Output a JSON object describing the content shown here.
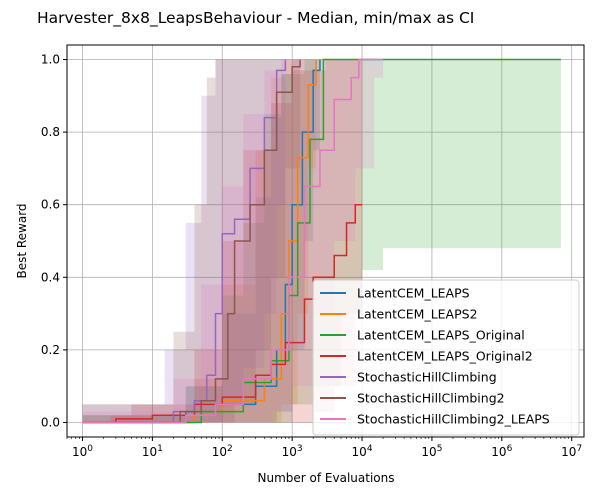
{
  "chart_data": {
    "type": "line",
    "title": "Harvester_8x8_LeapsBehaviour - Median, min/max as CI",
    "xlabel": "Number of Evaluations",
    "ylabel": "Best Reward",
    "xscale": "log",
    "xlim": [
      0.6,
      15000000
    ],
    "ylim": [
      -0.04,
      1.04
    ],
    "grid": true,
    "legend_position": "lower-right",
    "x_ticks": [
      {
        "value": 1,
        "base": "10",
        "exp": "0"
      },
      {
        "value": 10,
        "base": "10",
        "exp": "1"
      },
      {
        "value": 100,
        "base": "10",
        "exp": "2"
      },
      {
        "value": 1000,
        "base": "10",
        "exp": "3"
      },
      {
        "value": 10000,
        "base": "10",
        "exp": "4"
      },
      {
        "value": 100000,
        "base": "10",
        "exp": "5"
      },
      {
        "value": 1000000,
        "base": "10",
        "exp": "6"
      },
      {
        "value": 10000000,
        "base": "10",
        "exp": "7"
      }
    ],
    "y_ticks": [
      {
        "value": 0.0,
        "label": "0.0"
      },
      {
        "value": 0.2,
        "label": "0.2"
      },
      {
        "value": 0.4,
        "label": "0.4"
      },
      {
        "value": 0.6,
        "label": "0.6"
      },
      {
        "value": 0.8,
        "label": "0.8"
      },
      {
        "value": 1.0,
        "label": "1.0"
      }
    ],
    "series": [
      {
        "name": "LatentCEM_LEAPS",
        "color": "#1f77b4",
        "median": [
          [
            1,
            0
          ],
          [
            30,
            0.03
          ],
          [
            100,
            0.05
          ],
          [
            300,
            0.1
          ],
          [
            600,
            0.2
          ],
          [
            800,
            0.38
          ],
          [
            1000,
            0.6
          ],
          [
            1400,
            0.8
          ],
          [
            2000,
            0.97
          ],
          [
            2500,
            1.0
          ]
        ],
        "ci_upper": [
          [
            1,
            0.02
          ],
          [
            30,
            0.1
          ],
          [
            100,
            0.3
          ],
          [
            300,
            0.62
          ],
          [
            500,
            0.84
          ],
          [
            700,
            0.96
          ],
          [
            1000,
            1.0
          ],
          [
            2500,
            1.0
          ]
        ],
        "ci_lower": [
          [
            1,
            0
          ],
          [
            300,
            0
          ],
          [
            600,
            0.03
          ],
          [
            1000,
            0.2
          ],
          [
            1500,
            0.5
          ],
          [
            2000,
            0.75
          ],
          [
            2500,
            1.0
          ]
        ]
      },
      {
        "name": "LatentCEM_LEAPS2",
        "color": "#ff7f0e",
        "median": [
          [
            1,
            0
          ],
          [
            40,
            0.03
          ],
          [
            100,
            0.06
          ],
          [
            400,
            0.12
          ],
          [
            700,
            0.3
          ],
          [
            900,
            0.5
          ],
          [
            1200,
            0.73
          ],
          [
            1700,
            0.93
          ],
          [
            2200,
            1.0
          ]
        ],
        "ci_upper": [
          [
            1,
            0.02
          ],
          [
            40,
            0.12
          ],
          [
            100,
            0.38
          ],
          [
            300,
            0.75
          ],
          [
            500,
            0.95
          ],
          [
            800,
            1.0
          ],
          [
            2200,
            1.0
          ]
        ],
        "ci_lower": [
          [
            1,
            0
          ],
          [
            400,
            0
          ],
          [
            700,
            0.05
          ],
          [
            1200,
            0.3
          ],
          [
            1700,
            0.7
          ],
          [
            2200,
            1.0
          ]
        ]
      },
      {
        "name": "LatentCEM_LEAPS_Original",
        "color": "#2ca02c",
        "median": [
          [
            1,
            0
          ],
          [
            50,
            0.03
          ],
          [
            200,
            0.11
          ],
          [
            500,
            0.17
          ],
          [
            900,
            0.35
          ],
          [
            1200,
            0.55
          ],
          [
            1800,
            0.78
          ],
          [
            2800,
            1.0
          ],
          [
            7000000,
            1.0
          ]
        ],
        "ci_upper": [
          [
            1,
            0.02
          ],
          [
            30,
            0.1
          ],
          [
            100,
            0.35
          ],
          [
            200,
            0.55
          ],
          [
            400,
            0.85
          ],
          [
            700,
            0.96
          ],
          [
            1500,
            1.0
          ],
          [
            7000000,
            1.0
          ]
        ],
        "ci_lower": [
          [
            1,
            0
          ],
          [
            500,
            0
          ],
          [
            1000,
            0.05
          ],
          [
            2000,
            0.1
          ],
          [
            5000,
            0.3
          ],
          [
            10000,
            0.42
          ],
          [
            20000,
            0.48
          ],
          [
            7000000,
            0.48
          ]
        ]
      },
      {
        "name": "LatentCEM_LEAPS_Original2",
        "color": "#d62728",
        "median": [
          [
            2.5,
            0
          ],
          [
            3,
            0.01
          ],
          [
            10,
            0.02
          ],
          [
            40,
            0.05
          ],
          [
            100,
            0.07
          ],
          [
            300,
            0.13
          ],
          [
            500,
            0.16
          ],
          [
            800,
            0.22
          ],
          [
            1500,
            0.34
          ],
          [
            2000,
            0.4
          ],
          [
            4000,
            0.46
          ],
          [
            6000,
            0.55
          ],
          [
            8000,
            0.6
          ],
          [
            10000,
            0.6
          ]
        ],
        "ci_upper": [
          [
            2.5,
            0.02
          ],
          [
            5,
            0.05
          ],
          [
            40,
            0.2
          ],
          [
            100,
            0.5
          ],
          [
            200,
            0.75
          ],
          [
            500,
            0.88
          ],
          [
            1000,
            0.97
          ],
          [
            3000,
            1.0
          ],
          [
            10000,
            1.0
          ]
        ],
        "ci_lower": [
          [
            2.5,
            0
          ],
          [
            1000,
            0
          ],
          [
            2000,
            0.03
          ],
          [
            4000,
            0.1
          ],
          [
            8000,
            0.3
          ],
          [
            10000,
            0.4
          ]
        ]
      },
      {
        "name": "StochasticHillClimbing",
        "color": "#9467bd",
        "median": [
          [
            1,
            0
          ],
          [
            20,
            0.03
          ],
          [
            40,
            0.06
          ],
          [
            60,
            0.13
          ],
          [
            80,
            0.3
          ],
          [
            100,
            0.52
          ],
          [
            150,
            0.56
          ],
          [
            250,
            0.7
          ],
          [
            400,
            0.84
          ],
          [
            600,
            0.97
          ],
          [
            800,
            1.0
          ]
        ],
        "ci_upper": [
          [
            1,
            0.05
          ],
          [
            15,
            0.2
          ],
          [
            30,
            0.55
          ],
          [
            50,
            0.9
          ],
          [
            80,
            1.0
          ],
          [
            800,
            1.0
          ]
        ],
        "ci_lower": [
          [
            1,
            0
          ],
          [
            60,
            0
          ],
          [
            100,
            0.05
          ],
          [
            200,
            0.15
          ],
          [
            400,
            0.3
          ],
          [
            600,
            0.6
          ],
          [
            800,
            1.0
          ]
        ]
      },
      {
        "name": "StochasticHillClimbing2",
        "color": "#8c564b",
        "median": [
          [
            1,
            0
          ],
          [
            25,
            0.03
          ],
          [
            50,
            0.06
          ],
          [
            80,
            0.12
          ],
          [
            120,
            0.3
          ],
          [
            150,
            0.5
          ],
          [
            250,
            0.6
          ],
          [
            400,
            0.75
          ],
          [
            600,
            0.91
          ],
          [
            1000,
            0.98
          ],
          [
            1300,
            1.0
          ]
        ],
        "ci_upper": [
          [
            1,
            0.05
          ],
          [
            20,
            0.25
          ],
          [
            40,
            0.6
          ],
          [
            60,
            0.95
          ],
          [
            80,
            1.0
          ],
          [
            1300,
            1.0
          ]
        ],
        "ci_lower": [
          [
            1,
            0
          ],
          [
            80,
            0
          ],
          [
            150,
            0.05
          ],
          [
            300,
            0.2
          ],
          [
            500,
            0.4
          ],
          [
            800,
            0.7
          ],
          [
            1300,
            1.0
          ]
        ]
      },
      {
        "name": "StochasticHillClimbing2_LEAPS",
        "color": "#e377c2",
        "median": [
          [
            1,
            0
          ],
          [
            30,
            0.02
          ],
          [
            80,
            0.05
          ],
          [
            200,
            0.12
          ],
          [
            500,
            0.2
          ],
          [
            900,
            0.4
          ],
          [
            1500,
            0.65
          ],
          [
            2500,
            0.75
          ],
          [
            4000,
            0.89
          ],
          [
            7000,
            0.95
          ],
          [
            9000,
            1.0
          ],
          [
            20000,
            1.0
          ]
        ],
        "ci_upper": [
          [
            1,
            0.03
          ],
          [
            20,
            0.12
          ],
          [
            50,
            0.38
          ],
          [
            100,
            0.65
          ],
          [
            200,
            0.85
          ],
          [
            400,
            0.97
          ],
          [
            700,
            1.0
          ],
          [
            20000,
            1.0
          ]
        ],
        "ci_lower": [
          [
            1,
            0
          ],
          [
            200,
            0
          ],
          [
            500,
            0.03
          ],
          [
            1000,
            0.1
          ],
          [
            2000,
            0.3
          ],
          [
            4000,
            0.5
          ],
          [
            8000,
            0.7
          ],
          [
            15000,
            0.95
          ],
          [
            20000,
            1.0
          ]
        ]
      }
    ]
  }
}
